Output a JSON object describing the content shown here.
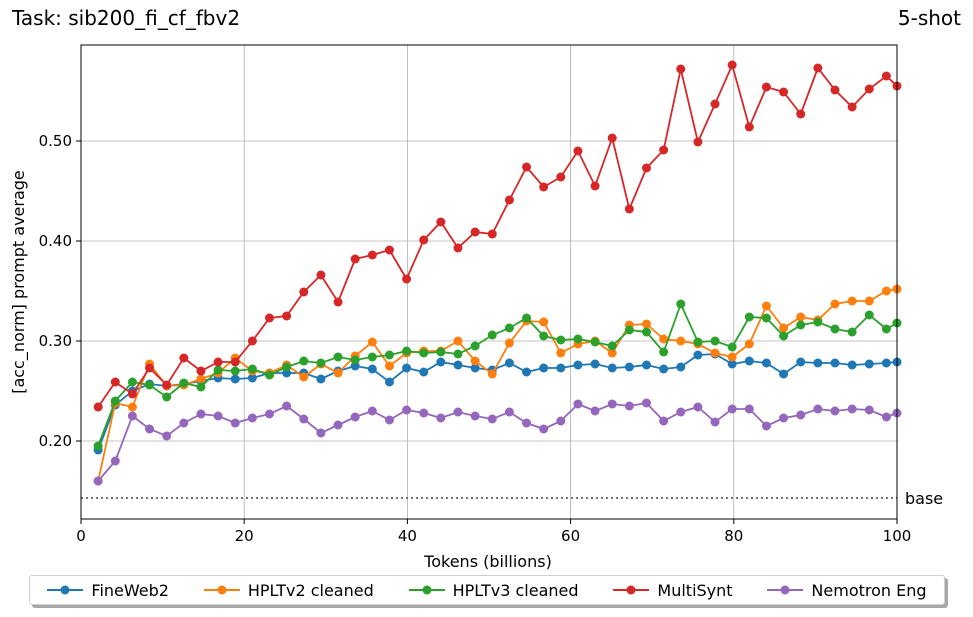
{
  "header": {
    "task": "Task: sib200_fi_cf_fbv2",
    "shots": "5-shot"
  },
  "chart_data": {
    "type": "line",
    "xlabel": "Tokens (billions)",
    "ylabel": "[acc_norm] prompt average",
    "xlim": [
      0,
      100
    ],
    "ylim": [
      0.122,
      0.596
    ],
    "xticks": [
      0,
      20,
      40,
      60,
      80,
      100
    ],
    "yticks": [
      0.2,
      0.3,
      0.4,
      0.5
    ],
    "ytick_labels": [
      "0.20",
      "0.30",
      "0.40",
      "0.50"
    ],
    "grid": true,
    "legend_position": "bottom",
    "baseline": {
      "label": "base",
      "value": 0.143
    },
    "x": [
      2.1,
      4.2,
      6.3,
      8.4,
      10.5,
      12.6,
      14.7,
      16.8,
      18.9,
      21.0,
      23.1,
      25.2,
      27.3,
      29.4,
      31.5,
      33.6,
      35.7,
      37.8,
      39.9,
      42.0,
      44.1,
      46.2,
      48.3,
      50.4,
      52.5,
      54.6,
      56.7,
      58.8,
      60.9,
      63.0,
      65.1,
      67.2,
      69.3,
      71.4,
      73.5,
      75.6,
      77.7,
      79.8,
      81.9,
      84.0,
      86.1,
      88.2,
      90.3,
      92.4,
      94.5,
      96.6,
      98.7,
      100.0
    ],
    "series": [
      {
        "name": "FineWeb2",
        "color": "#1f77b4",
        "values": [
          0.191,
          0.236,
          0.25,
          0.257,
          0.255,
          0.257,
          0.26,
          0.263,
          0.262,
          0.263,
          0.268,
          0.268,
          0.268,
          0.262,
          0.27,
          0.275,
          0.272,
          0.259,
          0.273,
          0.269,
          0.279,
          0.276,
          0.273,
          0.271,
          0.278,
          0.269,
          0.273,
          0.273,
          0.276,
          0.277,
          0.273,
          0.274,
          0.276,
          0.272,
          0.274,
          0.286,
          0.287,
          0.277,
          0.28,
          0.278,
          0.267,
          0.279,
          0.278,
          0.278,
          0.276,
          0.277,
          0.278,
          0.279
        ]
      },
      {
        "name": "HPLTv2 cleaned",
        "color": "#ff7f0e",
        "values": [
          0.16,
          0.238,
          0.234,
          0.277,
          0.255,
          0.256,
          0.262,
          0.268,
          0.283,
          0.27,
          0.268,
          0.276,
          0.264,
          0.277,
          0.268,
          0.285,
          0.299,
          0.275,
          0.288,
          0.29,
          0.29,
          0.3,
          0.28,
          0.267,
          0.298,
          0.32,
          0.319,
          0.288,
          0.297,
          0.3,
          0.288,
          0.316,
          0.317,
          0.302,
          0.3,
          0.297,
          0.288,
          0.284,
          0.297,
          0.335,
          0.313,
          0.324,
          0.321,
          0.337,
          0.34,
          0.34,
          0.35,
          0.352
        ]
      },
      {
        "name": "HPLTv3 cleaned",
        "color": "#2ca02c",
        "values": [
          0.195,
          0.24,
          0.259,
          0.256,
          0.244,
          0.258,
          0.254,
          0.271,
          0.27,
          0.272,
          0.266,
          0.274,
          0.28,
          0.278,
          0.284,
          0.281,
          0.284,
          0.286,
          0.29,
          0.288,
          0.289,
          0.287,
          0.295,
          0.306,
          0.313,
          0.323,
          0.305,
          0.301,
          0.302,
          0.299,
          0.295,
          0.311,
          0.309,
          0.289,
          0.337,
          0.299,
          0.3,
          0.294,
          0.324,
          0.323,
          0.305,
          0.316,
          0.319,
          0.312,
          0.309,
          0.326,
          0.312,
          0.318
        ]
      },
      {
        "name": "MultiSynt",
        "color": "#d62728",
        "values": [
          0.234,
          0.259,
          0.247,
          0.273,
          0.256,
          0.283,
          0.27,
          0.279,
          0.279,
          0.3,
          0.323,
          0.325,
          0.349,
          0.366,
          0.339,
          0.382,
          0.386,
          0.391,
          0.362,
          0.401,
          0.419,
          0.393,
          0.409,
          0.407,
          0.441,
          0.474,
          0.454,
          0.464,
          0.49,
          0.455,
          0.503,
          0.432,
          0.473,
          0.491,
          0.572,
          0.499,
          0.537,
          0.576,
          0.514,
          0.554,
          0.549,
          0.527,
          0.573,
          0.551,
          0.534,
          0.552,
          0.565,
          0.555
        ]
      },
      {
        "name": "Nemotron Eng",
        "color": "#9467bd",
        "values": [
          0.16,
          0.18,
          0.225,
          0.212,
          0.205,
          0.218,
          0.227,
          0.225,
          0.218,
          0.223,
          0.227,
          0.235,
          0.222,
          0.208,
          0.216,
          0.224,
          0.23,
          0.221,
          0.231,
          0.228,
          0.223,
          0.229,
          0.225,
          0.222,
          0.229,
          0.218,
          0.212,
          0.22,
          0.237,
          0.23,
          0.237,
          0.235,
          0.238,
          0.22,
          0.229,
          0.234,
          0.219,
          0.232,
          0.232,
          0.215,
          0.223,
          0.226,
          0.232,
          0.23,
          0.232,
          0.231,
          0.224,
          0.228
        ]
      }
    ]
  }
}
